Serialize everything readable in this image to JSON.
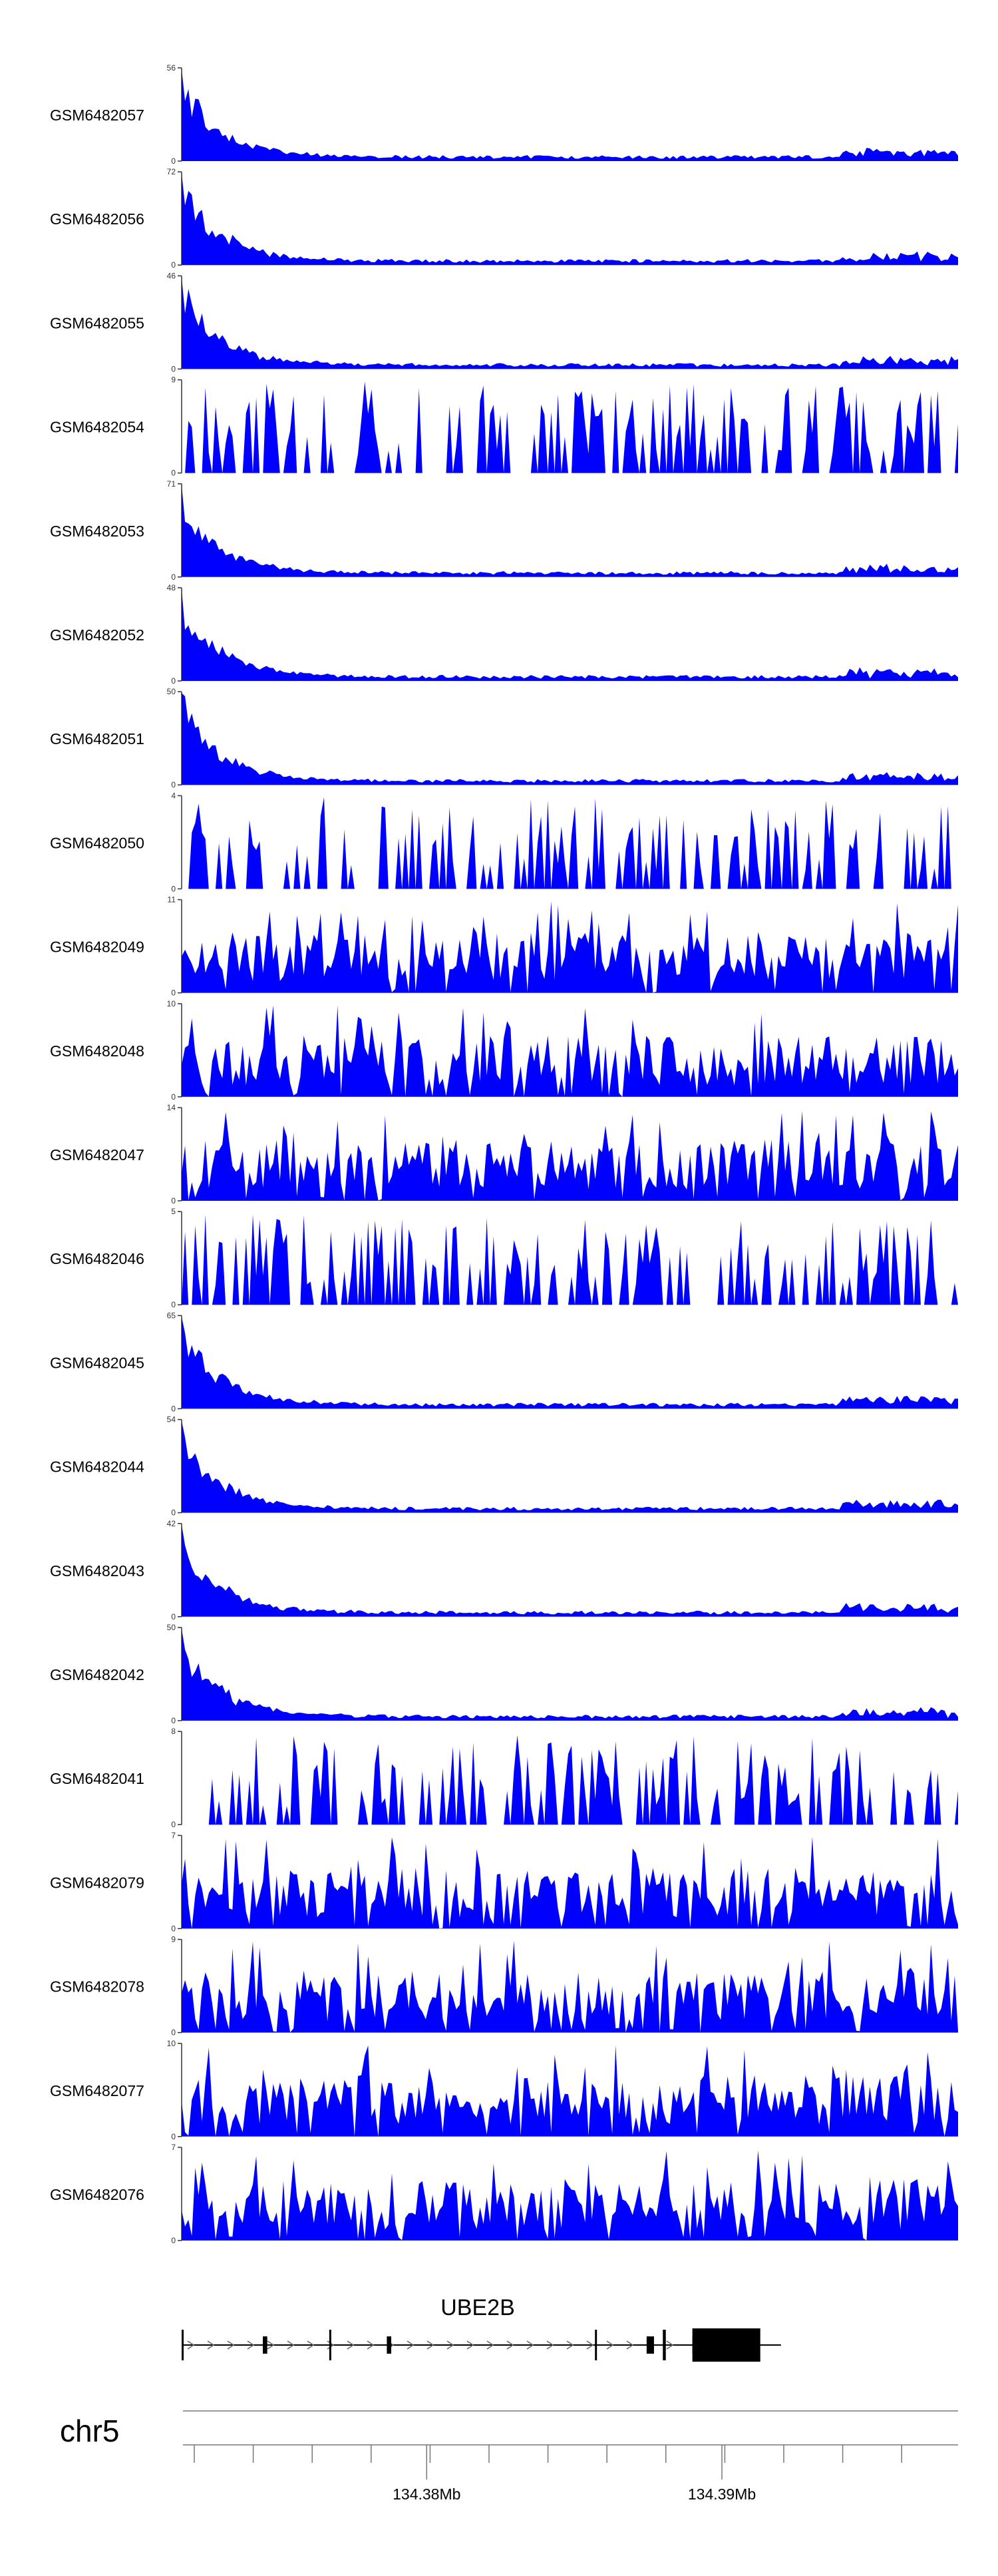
{
  "chart_data": {
    "type": "area",
    "genome": {
      "chromosome": "chr5",
      "axis_ticks": [
        {
          "position_mb": 134.38,
          "label": "134.38Mb"
        },
        {
          "position_mb": 134.39,
          "label": "134.39Mb"
        }
      ],
      "x_range_mb": [
        134.3717,
        134.398
      ]
    },
    "gene": {
      "name": "UBE2B",
      "strand": "+",
      "introns_span_mb": [
        134.3717,
        134.392
      ],
      "exons_mb": [
        [
          134.3717,
          134.37175
        ],
        [
          134.37445,
          134.3746
        ],
        [
          134.3767,
          134.37675
        ],
        [
          134.37865,
          134.3788
        ],
        [
          134.3857,
          134.38575
        ],
        [
          134.38745,
          134.3877
        ],
        [
          134.388,
          134.3881
        ],
        [
          134.389,
          134.3913
        ],
        [
          134.389,
          134.38915
        ]
      ]
    },
    "tracks": [
      {
        "name": "GSM6482057",
        "ymax": 56,
        "profile": "peak",
        "seed": 11
      },
      {
        "name": "GSM6482056",
        "ymax": 72,
        "profile": "peak",
        "seed": 12
      },
      {
        "name": "GSM6482055",
        "ymax": 46,
        "profile": "peak",
        "seed": 13
      },
      {
        "name": "GSM6482054",
        "ymax": 9,
        "profile": "sparse",
        "seed": 14
      },
      {
        "name": "GSM6482053",
        "ymax": 71,
        "profile": "peak",
        "seed": 15
      },
      {
        "name": "GSM6482052",
        "ymax": 48,
        "profile": "peak",
        "seed": 16
      },
      {
        "name": "GSM6482051",
        "ymax": 50,
        "profile": "peak",
        "seed": 17
      },
      {
        "name": "GSM6482050",
        "ymax": 4,
        "profile": "sparse",
        "seed": 18
      },
      {
        "name": "GSM6482049",
        "ymax": 11,
        "profile": "dense",
        "seed": 19
      },
      {
        "name": "GSM6482048",
        "ymax": 10,
        "profile": "dense",
        "seed": 20
      },
      {
        "name": "GSM6482047",
        "ymax": 14,
        "profile": "dense",
        "seed": 21
      },
      {
        "name": "GSM6482046",
        "ymax": 5,
        "profile": "sparse",
        "seed": 22
      },
      {
        "name": "GSM6482045",
        "ymax": 65,
        "profile": "peak",
        "seed": 23
      },
      {
        "name": "GSM6482044",
        "ymax": 54,
        "profile": "peak",
        "seed": 24
      },
      {
        "name": "GSM6482043",
        "ymax": 42,
        "profile": "peak",
        "seed": 25
      },
      {
        "name": "GSM6482042",
        "ymax": 50,
        "profile": "peak",
        "seed": 26
      },
      {
        "name": "GSM6482041",
        "ymax": 8,
        "profile": "sparse",
        "seed": 27
      },
      {
        "name": "GSM6482079",
        "ymax": 7,
        "profile": "dense",
        "seed": 28
      },
      {
        "name": "GSM6482078",
        "ymax": 9,
        "profile": "dense",
        "seed": 29
      },
      {
        "name": "GSM6482077",
        "ymax": 10,
        "profile": "dense",
        "seed": 30
      },
      {
        "name": "GSM6482076",
        "ymax": 7,
        "profile": "dense",
        "seed": 31
      }
    ],
    "colors": {
      "fill": "#0000ff",
      "axis": "#333333",
      "gene": "#000000",
      "ideogram": "#888888"
    }
  }
}
